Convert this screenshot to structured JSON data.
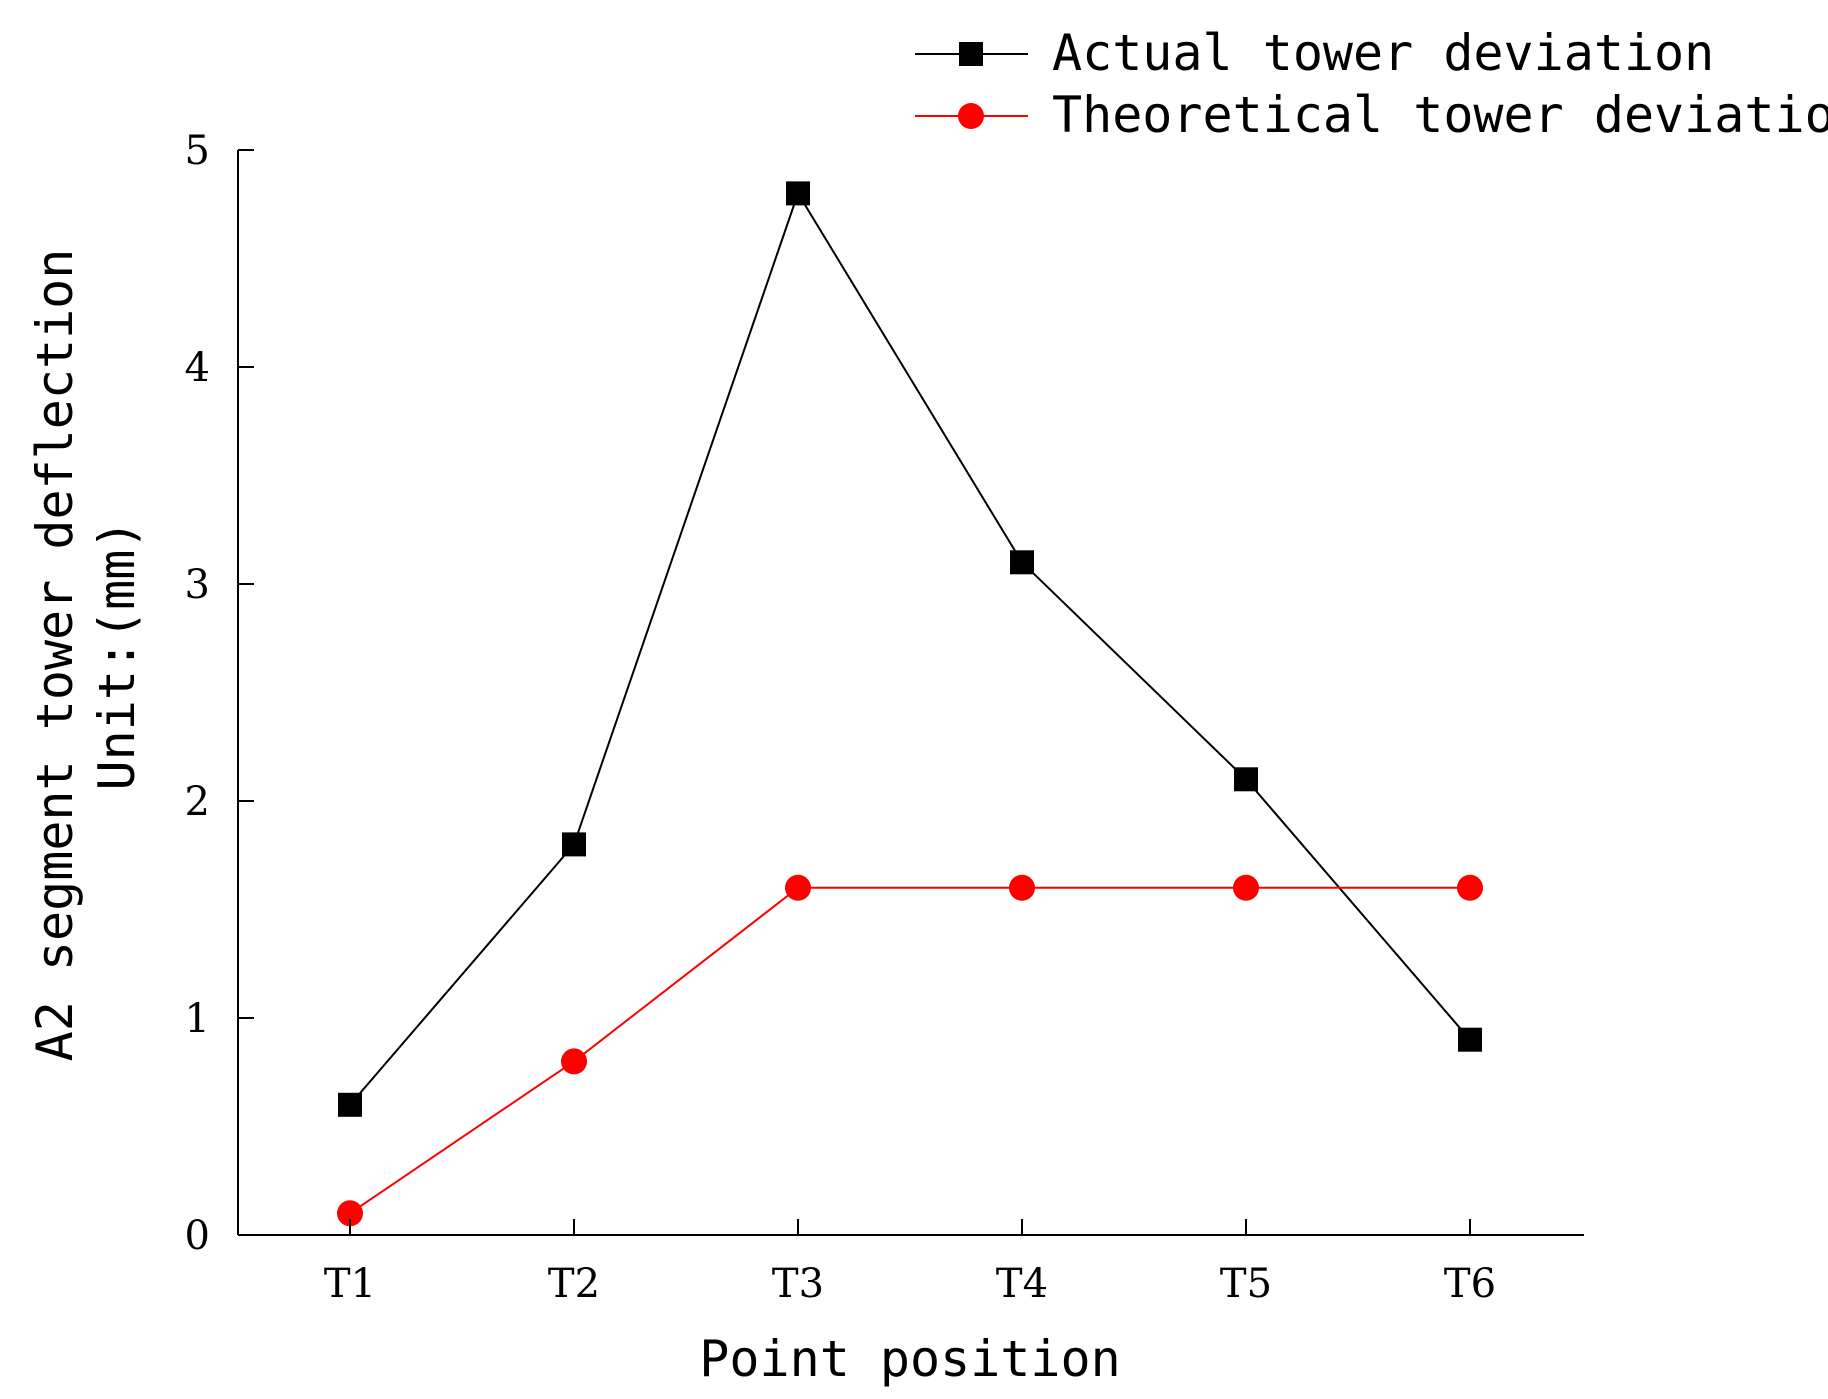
{
  "chart_data": {
    "type": "line",
    "title": "",
    "xlabel": "Point position",
    "ylabel_lines": [
      "A2 segment tower deflection",
      "Unit:(mm)"
    ],
    "categories": [
      "T1",
      "T2",
      "T3",
      "T4",
      "T5",
      "T6"
    ],
    "ylim": [
      0,
      5
    ],
    "yticks": [
      "0",
      "1",
      "2",
      "3",
      "4",
      "5"
    ],
    "grid": false,
    "legend_position": "top-right",
    "series": [
      {
        "name": "Actual tower deviation",
        "color": "#000000",
        "marker": "square",
        "values": [
          0.6,
          1.8,
          4.8,
          3.1,
          2.1,
          0.9
        ]
      },
      {
        "name": "Theoretical tower deviation",
        "color": "#ff0000",
        "marker": "circle",
        "values": [
          0.1,
          0.8,
          1.6,
          1.6,
          1.6,
          1.6
        ]
      }
    ]
  }
}
